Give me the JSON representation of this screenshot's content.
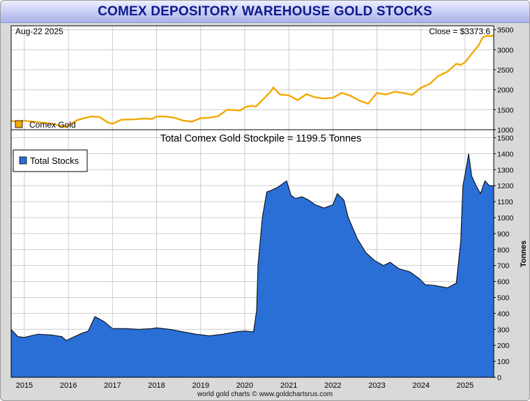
{
  "title": "COMEX DEPOSITORY WAREHOUSE GOLD STOCKS",
  "credit": "world gold charts © www.goldchartsrus.com",
  "colors": {
    "gold_line": "#f2a900",
    "stocks_fill": "#2a6fd6",
    "stocks_edge": "#000000",
    "grid": "#cccccc",
    "title_text": "#0d1a8c"
  },
  "chart_data": [
    {
      "type": "line",
      "title": "",
      "date_label": "Aug-22  2025",
      "close_label": "Close = $3373.6",
      "legend": "Comex Gold",
      "legend_position": "bottom-left",
      "ylabel": "",
      "xlim": [
        2014.7,
        2025.65
      ],
      "ylim": [
        1000,
        3600
      ],
      "yticks": [
        1000,
        1500,
        2000,
        2500,
        3000,
        3500
      ],
      "series": [
        {
          "name": "Comex Gold",
          "x": [
            2014.7,
            2014.9,
            2015.0,
            2015.1,
            2015.3,
            2015.5,
            2015.7,
            2015.9,
            2016.0,
            2016.2,
            2016.5,
            2016.7,
            2016.9,
            2017.0,
            2017.2,
            2017.5,
            2017.7,
            2017.9,
            2018.0,
            2018.2,
            2018.4,
            2018.6,
            2018.8,
            2019.0,
            2019.2,
            2019.4,
            2019.6,
            2019.8,
            2019.9,
            2020.0,
            2020.15,
            2020.25,
            2020.4,
            2020.6,
            2020.65,
            2020.8,
            2021.0,
            2021.2,
            2021.4,
            2021.6,
            2021.8,
            2022.0,
            2022.2,
            2022.4,
            2022.6,
            2022.8,
            2023.0,
            2023.2,
            2023.4,
            2023.6,
            2023.8,
            2024.0,
            2024.2,
            2024.4,
            2024.6,
            2024.8,
            2024.9,
            2025.0,
            2025.15,
            2025.3,
            2025.4,
            2025.5,
            2025.6,
            2025.65
          ],
          "values": [
            1220,
            1200,
            1230,
            1210,
            1190,
            1170,
            1130,
            1070,
            1110,
            1240,
            1330,
            1320,
            1180,
            1150,
            1250,
            1260,
            1280,
            1270,
            1330,
            1330,
            1300,
            1230,
            1200,
            1290,
            1300,
            1340,
            1500,
            1490,
            1480,
            1560,
            1600,
            1580,
            1740,
            1970,
            2060,
            1880,
            1860,
            1740,
            1890,
            1810,
            1780,
            1800,
            1920,
            1850,
            1730,
            1650,
            1920,
            1880,
            1950,
            1920,
            1870,
            2050,
            2150,
            2350,
            2450,
            2650,
            2620,
            2690,
            2900,
            3100,
            3310,
            3350,
            3340,
            3370
          ]
        }
      ]
    },
    {
      "type": "area",
      "title": "Total Comex Gold Stockpile = 1199.5 Tonnes",
      "legend": "Total Stocks",
      "legend_position": "top-left",
      "ylabel": "Tonnes",
      "xlabel": "",
      "xlim": [
        2014.7,
        2025.65
      ],
      "ylim": [
        0,
        1550
      ],
      "yticks": [
        0,
        100,
        200,
        300,
        400,
        500,
        600,
        700,
        800,
        900,
        1000,
        1100,
        1200,
        1300,
        1400,
        1500
      ],
      "xticks": [
        2015,
        2016,
        2017,
        2018,
        2019,
        2020,
        2021,
        2022,
        2023,
        2024,
        2025
      ],
      "xtick_labels": [
        "2015",
        "2016",
        "2017",
        "2018",
        "2019",
        "2020",
        "2021",
        "2022",
        "2023",
        "2024",
        "2025"
      ],
      "series": [
        {
          "name": "Total Stocks",
          "x": [
            2014.7,
            2014.85,
            2015.0,
            2015.3,
            2015.6,
            2015.85,
            2015.95,
            2016.1,
            2016.3,
            2016.45,
            2016.6,
            2016.8,
            2017.0,
            2017.3,
            2017.6,
            2017.9,
            2018.0,
            2018.3,
            2018.6,
            2018.9,
            2019.2,
            2019.5,
            2019.8,
            2020.0,
            2020.2,
            2020.27,
            2020.3,
            2020.4,
            2020.5,
            2020.6,
            2020.75,
            2020.95,
            2021.05,
            2021.15,
            2021.3,
            2021.45,
            2021.6,
            2021.8,
            2022.0,
            2022.1,
            2022.25,
            2022.35,
            2022.55,
            2022.75,
            2022.95,
            2023.15,
            2023.3,
            2023.5,
            2023.75,
            2023.95,
            2024.1,
            2024.3,
            2024.6,
            2024.8,
            2024.9,
            2024.95,
            2025.0,
            2025.08,
            2025.15,
            2025.25,
            2025.35,
            2025.45,
            2025.55,
            2025.65
          ],
          "values": [
            300,
            255,
            250,
            270,
            265,
            255,
            230,
            250,
            275,
            290,
            380,
            350,
            305,
            305,
            300,
            305,
            310,
            300,
            285,
            270,
            260,
            270,
            285,
            290,
            285,
            420,
            700,
            1000,
            1160,
            1170,
            1190,
            1230,
            1140,
            1120,
            1130,
            1110,
            1080,
            1060,
            1080,
            1150,
            1110,
            1000,
            870,
            780,
            730,
            700,
            720,
            680,
            660,
            620,
            580,
            575,
            560,
            590,
            850,
            1200,
            1270,
            1400,
            1260,
            1200,
            1150,
            1230,
            1200,
            1200
          ]
        }
      ]
    }
  ]
}
